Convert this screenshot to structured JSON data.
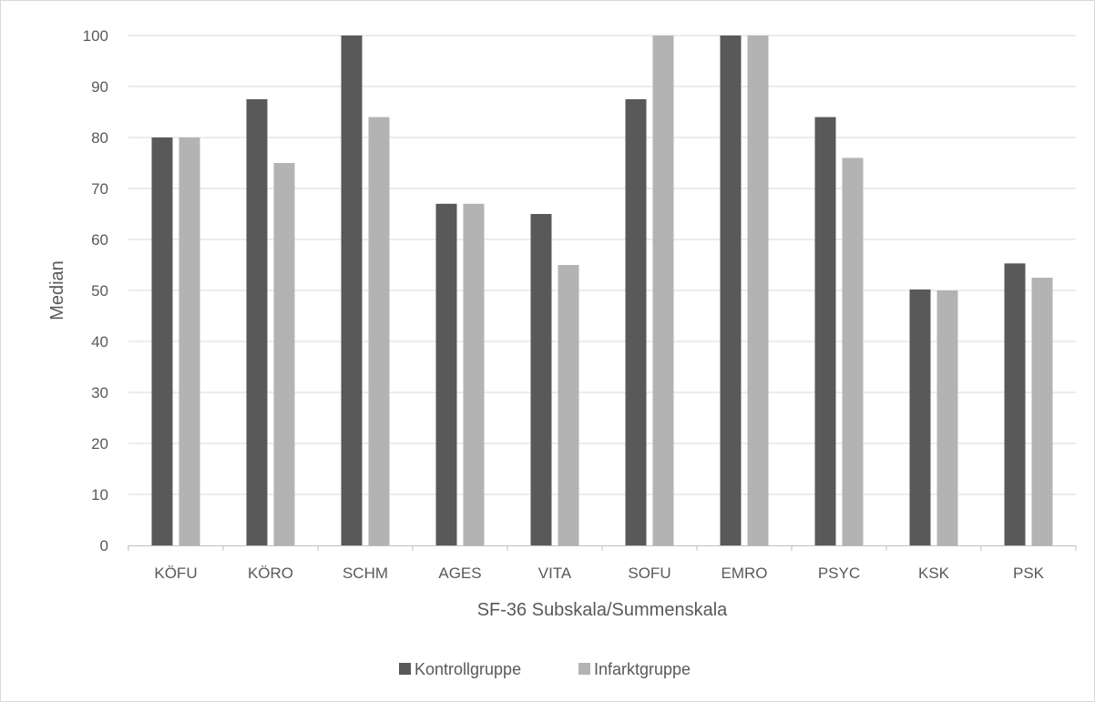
{
  "chart_data": {
    "type": "bar",
    "title": "",
    "xlabel": "SF-36 Subskala/Summenskala",
    "ylabel": "Median",
    "categories": [
      "KÖFU",
      "KÖRO",
      "SCHM",
      "AGES",
      "VITA",
      "SOFU",
      "EMRO",
      "PSYC",
      "KSK",
      "PSK"
    ],
    "series": [
      {
        "name": "Kontrollgruppe",
        "color": "#595959",
        "values": [
          80,
          87.5,
          100,
          67,
          65,
          87.5,
          100,
          84,
          50.2,
          55.3
        ]
      },
      {
        "name": "Infarktgruppe",
        "color": "#b3b3b3",
        "values": [
          80,
          75,
          84,
          67,
          55,
          100,
          100,
          76,
          50,
          52.5
        ]
      }
    ],
    "ylim": [
      0,
      100
    ],
    "yticks": [
      0,
      10,
      20,
      30,
      40,
      50,
      60,
      70,
      80,
      90,
      100
    ],
    "grid": true,
    "legend_position": "bottom"
  }
}
